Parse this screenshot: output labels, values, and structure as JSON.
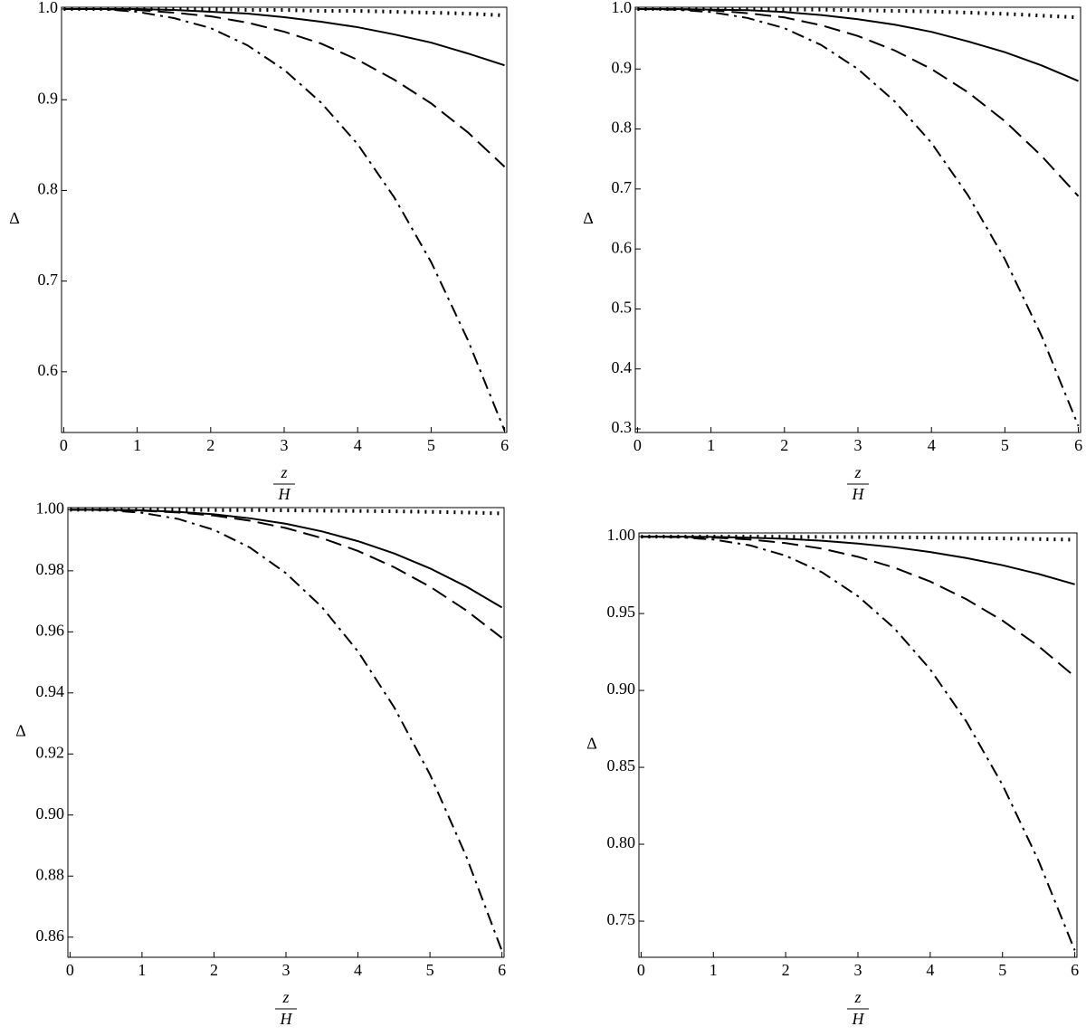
{
  "chart_data": [
    {
      "type": "line",
      "ylabel": "Δ",
      "xlabel": {
        "numerator": "z",
        "denominator": "H"
      },
      "x": [
        0,
        0.5,
        1,
        1.5,
        2,
        2.5,
        3,
        3.5,
        4,
        4.5,
        5,
        5.5,
        6
      ],
      "xlim": [
        -0.03,
        6.03
      ],
      "xticks": [
        0,
        1,
        2,
        3,
        4,
        5,
        6
      ],
      "ylim": [
        0.533,
        1.002
      ],
      "yticks": [
        0.6,
        0.7,
        0.8,
        0.9,
        {
          "value": 1,
          "label": "1.0"
        }
      ],
      "series": [
        {
          "style": "dotted",
          "color": "#000000",
          "values": [
            1,
            1,
            1,
            1,
            1,
            0.999,
            0.999,
            0.998,
            0.998,
            0.997,
            0.996,
            0.995,
            0.993
          ]
        },
        {
          "style": "solid",
          "color": "#000000",
          "values": [
            1,
            1,
            1,
            0.999,
            0.997,
            0.995,
            0.991,
            0.986,
            0.98,
            0.972,
            0.963,
            0.951,
            0.938
          ]
        },
        {
          "style": "dashed",
          "color": "#000000",
          "values": [
            1,
            1,
            0.999,
            0.996,
            0.992,
            0.985,
            0.975,
            0.962,
            0.944,
            0.922,
            0.896,
            0.864,
            0.826
          ]
        },
        {
          "style": "dashdot",
          "color": "#000000",
          "values": [
            1,
            1,
            0.997,
            0.99,
            0.979,
            0.96,
            0.933,
            0.897,
            0.851,
            0.792,
            0.721,
            0.635,
            0.535
          ]
        }
      ]
    },
    {
      "type": "line",
      "ylabel": "Δ",
      "xlabel": {
        "numerator": "z",
        "denominator": "H"
      },
      "x": [
        0,
        0.5,
        1,
        1.5,
        2,
        2.5,
        3,
        3.5,
        4,
        4.5,
        5,
        5.5,
        6
      ],
      "xlim": [
        -0.03,
        6.03
      ],
      "xticks": [
        0,
        1,
        2,
        3,
        4,
        5,
        6
      ],
      "ylim": [
        0.294,
        1.003
      ],
      "yticks": [
        0.3,
        0.4,
        0.5,
        0.6,
        0.7,
        0.8,
        0.9,
        {
          "value": 1,
          "label": "1.0"
        }
      ],
      "series": [
        {
          "style": "dotted",
          "color": "#000000",
          "values": [
            1,
            1,
            1,
            1,
            0.999,
            0.999,
            0.998,
            0.997,
            0.996,
            0.994,
            0.992,
            0.989,
            0.986
          ]
        },
        {
          "style": "solid",
          "color": "#000000",
          "values": [
            1,
            1,
            0.999,
            0.998,
            0.995,
            0.99,
            0.983,
            0.974,
            0.962,
            0.946,
            0.928,
            0.906,
            0.88
          ]
        },
        {
          "style": "dashed",
          "color": "#000000",
          "values": [
            1,
            1,
            0.998,
            0.993,
            0.986,
            0.973,
            0.955,
            0.931,
            0.9,
            0.861,
            0.813,
            0.755,
            0.688
          ]
        },
        {
          "style": "dashdot",
          "color": "#000000",
          "values": [
            1,
            0.999,
            0.995,
            0.985,
            0.968,
            0.94,
            0.9,
            0.846,
            0.777,
            0.689,
            0.583,
            0.455,
            0.305
          ]
        }
      ]
    },
    {
      "type": "line",
      "ylabel": "Δ",
      "xlabel": {
        "numerator": "z",
        "denominator": "H"
      },
      "x": [
        0,
        0.5,
        1,
        1.5,
        2,
        2.5,
        3,
        3.5,
        4,
        4.5,
        5,
        5.5,
        6
      ],
      "xlim": [
        -0.03,
        6.03
      ],
      "xticks": [
        0,
        1,
        2,
        3,
        4,
        5,
        6
      ],
      "ylim": [
        0.8534,
        1.0007
      ],
      "yticks": [
        0.86,
        0.88,
        {
          "value": 0.9,
          "label": "0.90"
        },
        0.92,
        0.94,
        0.96,
        0.98,
        {
          "value": 1,
          "label": "1.00"
        }
      ],
      "series": [
        {
          "style": "dotted",
          "color": "#000000",
          "values": [
            1,
            1,
            1,
            1,
            0.9999,
            0.9999,
            0.9998,
            0.9997,
            0.9996,
            0.9995,
            0.9993,
            0.9991,
            0.9988
          ]
        },
        {
          "style": "solid",
          "color": "#000000",
          "values": [
            1,
            1,
            0.9998,
            0.9993,
            0.9985,
            0.9972,
            0.9954,
            0.9929,
            0.9897,
            0.9857,
            0.9808,
            0.9749,
            0.968
          ]
        },
        {
          "style": "dashed",
          "color": "#000000",
          "values": [
            1,
            1,
            0.9997,
            0.9991,
            0.9981,
            0.9964,
            0.994,
            0.9907,
            0.9865,
            0.9812,
            0.9748,
            0.9671,
            0.958
          ]
        },
        {
          "style": "dashdot",
          "color": "#000000",
          "values": [
            1,
            0.9999,
            0.999,
            0.997,
            0.9934,
            0.9876,
            0.9792,
            0.9681,
            0.9536,
            0.9354,
            0.9133,
            0.8867,
            0.8555
          ]
        }
      ]
    },
    {
      "type": "line",
      "ylabel": "Δ",
      "xlabel": {
        "numerator": "z",
        "denominator": "H"
      },
      "x": [
        0,
        0.5,
        1,
        1.5,
        2,
        2.5,
        3,
        3.5,
        4,
        4.5,
        5,
        5.5,
        6
      ],
      "xlim": [
        -0.03,
        6.03
      ],
      "xticks": [
        0,
        1,
        2,
        3,
        4,
        5,
        6
      ],
      "ylim": [
        0.7265,
        1.0024
      ],
      "yticks": [
        0.75,
        {
          "value": 0.8,
          "label": "0.80"
        },
        0.85,
        {
          "value": 0.9,
          "label": "0.90"
        },
        0.95,
        {
          "value": 1,
          "label": "1.00"
        }
      ],
      "series": [
        {
          "style": "dotted",
          "color": "#000000",
          "values": [
            1,
            1,
            1,
            1,
            0.9999,
            0.9998,
            0.9997,
            0.9996,
            0.9994,
            0.9991,
            0.9988,
            0.9984,
            0.998
          ]
        },
        {
          "style": "solid",
          "color": "#000000",
          "values": [
            1,
            1,
            0.9998,
            0.9993,
            0.9986,
            0.9973,
            0.9955,
            0.9931,
            0.99,
            0.9861,
            0.9814,
            0.9757,
            0.969
          ]
        },
        {
          "style": "dashed",
          "color": "#000000",
          "values": [
            1,
            0.9999,
            0.9994,
            0.9981,
            0.9958,
            0.9922,
            0.9869,
            0.9799,
            0.9708,
            0.9593,
            0.9454,
            0.9287,
            0.909
          ]
        },
        {
          "style": "dashdot",
          "color": "#000000",
          "values": [
            1,
            0.9997,
            0.9981,
            0.9944,
            0.9876,
            0.9769,
            0.9613,
            0.9406,
            0.9137,
            0.8798,
            0.8386,
            0.7891,
            0.731
          ]
        }
      ]
    }
  ]
}
